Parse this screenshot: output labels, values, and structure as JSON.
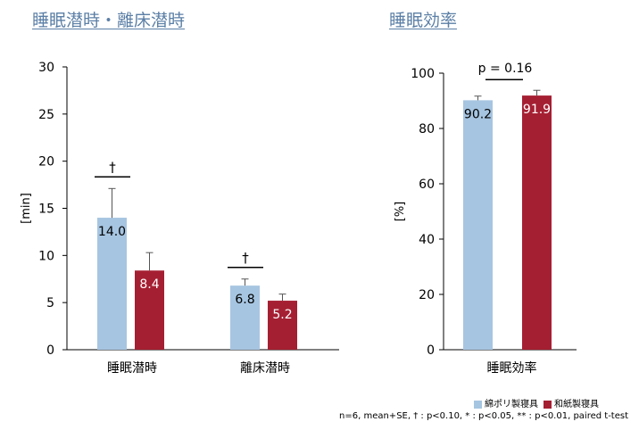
{
  "colors": {
    "cotton": "#a6c5e1",
    "washi": "#a51f32",
    "title": "#5b7fa6"
  },
  "legend": {
    "cotton_label": "綿ポリ製寝具",
    "washi_label": "和紙製寝具"
  },
  "footnote": "n=6, mean+SE, † : p<0.10, * : p<0.05, ** : p<0.01, paired t-test",
  "chart_data": [
    {
      "type": "bar",
      "title": "睡眠潜時・離床潜時",
      "ylabel": "[min]",
      "ylim": [
        0,
        30
      ],
      "yticks": [
        0,
        5,
        10,
        15,
        20,
        25,
        30
      ],
      "categories": [
        "睡眠潜時",
        "離床潜時"
      ],
      "series": [
        {
          "name": "綿ポリ製寝具",
          "values": [
            14.0,
            6.8
          ],
          "errors": [
            3.1,
            0.7
          ],
          "labels": [
            "14.0",
            "6.8"
          ]
        },
        {
          "name": "和紙製寝具",
          "values": [
            8.4,
            5.2
          ],
          "errors": [
            1.9,
            0.7
          ],
          "labels": [
            "8.4",
            "5.2"
          ]
        }
      ],
      "annotations": [
        "†",
        "†"
      ]
    },
    {
      "type": "bar",
      "title": "睡眠効率",
      "ylabel": "[%]",
      "ylim": [
        0,
        100
      ],
      "yticks": [
        0,
        20,
        40,
        60,
        80,
        100
      ],
      "categories": [
        "睡眠効率"
      ],
      "series": [
        {
          "name": "綿ポリ製寝具",
          "values": [
            90.2
          ],
          "errors": [
            1.5
          ],
          "labels": [
            "90.2"
          ]
        },
        {
          "name": "和紙製寝具",
          "values": [
            91.9
          ],
          "errors": [
            1.9
          ],
          "labels": [
            "91.9"
          ]
        }
      ],
      "annotation": "p = 0.16"
    }
  ]
}
